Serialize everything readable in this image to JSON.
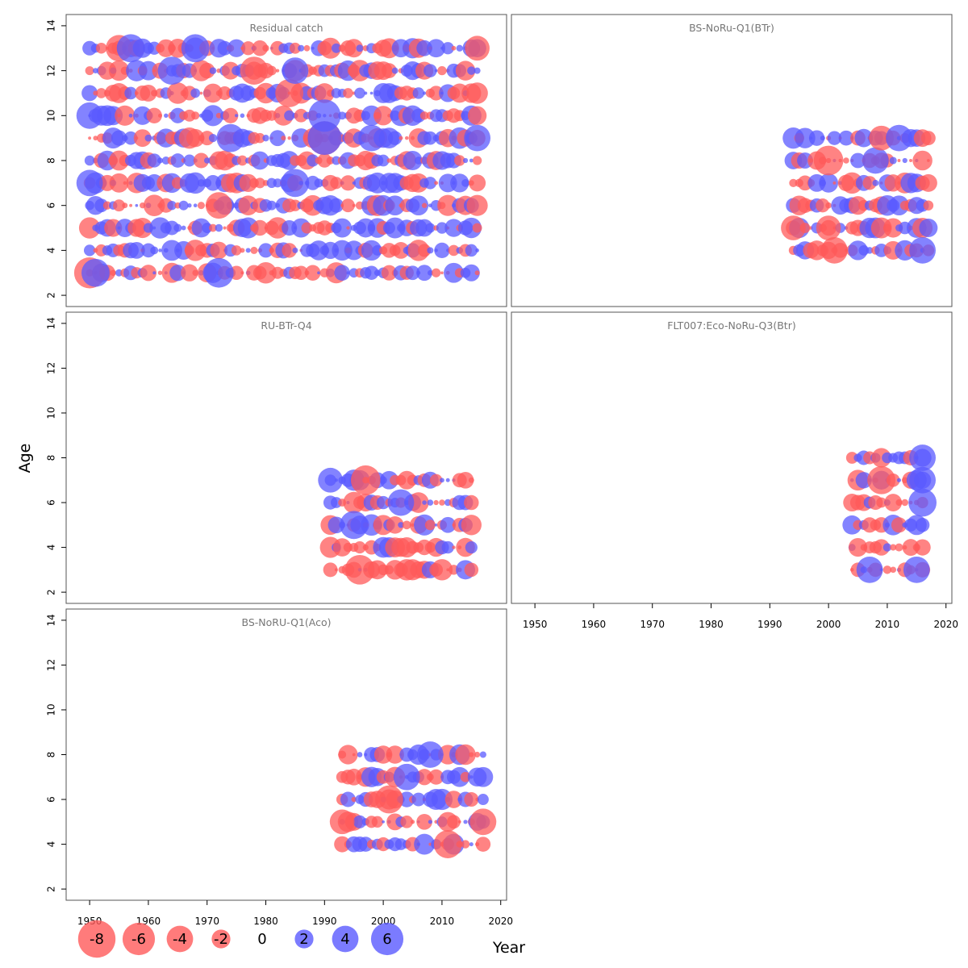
{
  "figure": {
    "xlabel": "Year",
    "ylabel": "Age",
    "x_ticks": [
      1950,
      1960,
      1970,
      1980,
      1990,
      2000,
      2010,
      2020
    ],
    "y_ticks": [
      2,
      4,
      6,
      8,
      10,
      12,
      14
    ],
    "colors": {
      "negative": "#ff5a5a",
      "positive": "#5a5aff",
      "frame": "#555555",
      "title": "#777777"
    }
  },
  "legend": {
    "items": [
      {
        "label": "-8",
        "value": -8
      },
      {
        "label": "-6",
        "value": -6
      },
      {
        "label": "-4",
        "value": -4
      },
      {
        "label": "-2",
        "value": -2
      },
      {
        "label": "0",
        "value": 0
      },
      {
        "label": "2",
        "value": 2
      },
      {
        "label": "4",
        "value": 4
      },
      {
        "label": "6",
        "value": 6
      }
    ]
  },
  "chart_data": [
    {
      "type": "scatter",
      "title": "Residual catch",
      "xlim": [
        1946,
        2021
      ],
      "ylim": [
        1.5,
        14.5
      ],
      "years": [
        1950,
        2016
      ],
      "ages": [
        3,
        4,
        5,
        6,
        7,
        8,
        9,
        10,
        11,
        12,
        13
      ],
      "seed": 11,
      "big": [
        {
          "x": 1950,
          "y": 3,
          "v": -5.5
        },
        {
          "x": 1951,
          "y": 3,
          "v": 4.5
        },
        {
          "x": 1972,
          "y": 3,
          "v": 5
        },
        {
          "x": 1990,
          "y": 9,
          "v": -6.5
        },
        {
          "x": 1990,
          "y": 9,
          "v": 6.5
        },
        {
          "x": 1990,
          "y": 10,
          "v": 6
        },
        {
          "x": 1984,
          "y": 11,
          "v": -4.5
        },
        {
          "x": 1978,
          "y": 12,
          "v": -4.5
        },
        {
          "x": 1964,
          "y": 12,
          "v": 4.5
        },
        {
          "x": 1950,
          "y": 10,
          "v": 4
        },
        {
          "x": 1950,
          "y": 7,
          "v": 4
        },
        {
          "x": 1974,
          "y": 9,
          "v": 4.5
        },
        {
          "x": 1985,
          "y": 7,
          "v": 4.5
        },
        {
          "x": 1972,
          "y": 6,
          "v": -4
        },
        {
          "x": 1955,
          "y": 13,
          "v": -4
        },
        {
          "x": 1968,
          "y": 13,
          "v": 4.5
        },
        {
          "x": 1957,
          "y": 13,
          "v": 4.5
        },
        {
          "x": 1985,
          "y": 12,
          "v": 4
        },
        {
          "x": 1998,
          "y": 9,
          "v": 4
        },
        {
          "x": 2016,
          "y": 9,
          "v": 4
        },
        {
          "x": 2016,
          "y": 13,
          "v": -3.5
        }
      ]
    },
    {
      "type": "scatter",
      "title": "BS-NoRu-Q1(BTr)",
      "xlim": [
        1946,
        2021
      ],
      "ylim": [
        1.5,
        14.5
      ],
      "years": [
        1994,
        2017
      ],
      "ages": [
        4,
        5,
        6,
        7,
        8,
        9
      ],
      "seed": 23,
      "big": [
        {
          "x": 2000,
          "y": 8,
          "v": -5
        },
        {
          "x": 2008,
          "y": 8,
          "v": 4
        },
        {
          "x": 2016,
          "y": 4,
          "v": 4
        },
        {
          "x": 1994,
          "y": 5,
          "v": -3.5
        },
        {
          "x": 2000,
          "y": 5,
          "v": -3.5
        },
        {
          "x": 2009,
          "y": 9,
          "v": -3.5
        },
        {
          "x": 2001,
          "y": 4,
          "v": -4
        },
        {
          "x": 2012,
          "y": 9,
          "v": 4
        }
      ]
    },
    {
      "type": "scatter",
      "title": "RU-BTr-Q4",
      "xlim": [
        1946,
        2021
      ],
      "ylim": [
        1.5,
        14.5
      ],
      "years": [
        1991,
        2015
      ],
      "ages": [
        3,
        4,
        5,
        6,
        7
      ],
      "seed": 37,
      "big": [
        {
          "x": 1997,
          "y": 7,
          "v": -5
        },
        {
          "x": 1996,
          "y": 3,
          "v": -5
        },
        {
          "x": 1995,
          "y": 5,
          "v": 4.5
        },
        {
          "x": 2003,
          "y": 6,
          "v": 4
        },
        {
          "x": 1991,
          "y": 7,
          "v": 3.5
        }
      ]
    },
    {
      "type": "scatter",
      "title": "FLT007:Eco-NoRu-Q3(Btr)",
      "xlim": [
        1946,
        2021
      ],
      "ylim": [
        1.5,
        14.5
      ],
      "years": [
        2004,
        2016
      ],
      "ages": [
        3,
        4,
        5,
        6,
        7,
        8
      ],
      "seed": 53,
      "big": [
        {
          "x": 2016,
          "y": 8,
          "v": 4
        },
        {
          "x": 2016,
          "y": 6,
          "v": 4.5
        },
        {
          "x": 2009,
          "y": 7,
          "v": -4.5
        },
        {
          "x": 2007,
          "y": 3,
          "v": 4
        },
        {
          "x": 2015,
          "y": 3,
          "v": 4
        },
        {
          "x": 2016,
          "y": 7,
          "v": 4
        }
      ]
    },
    {
      "type": "scatter",
      "title": "BS-NoRU-Q1(Aco)",
      "xlim": [
        1946,
        2021
      ],
      "ylim": [
        1.5,
        14.5
      ],
      "years": [
        1993,
        2017
      ],
      "ages": [
        4,
        5,
        6,
        7,
        8
      ],
      "seed": 71,
      "big": [
        {
          "x": 2001,
          "y": 6,
          "v": -4.5
        },
        {
          "x": 2011,
          "y": 4,
          "v": -4.5
        },
        {
          "x": 2017,
          "y": 5,
          "v": -4
        },
        {
          "x": 2008,
          "y": 8,
          "v": 4
        },
        {
          "x": 1993,
          "y": 5,
          "v": -3.5
        },
        {
          "x": 2004,
          "y": 7,
          "v": 4
        }
      ]
    }
  ]
}
